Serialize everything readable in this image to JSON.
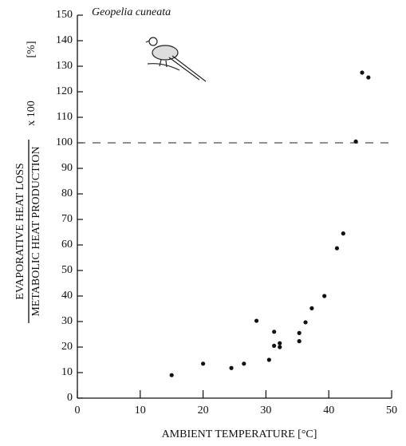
{
  "chart_data": {
    "type": "scatter",
    "title": "Geopelia cuneata",
    "x_label": "AMBIENT TEMPERATURE  [°C]",
    "y_label_numerator": "EVAPORATIVE  HEAT  LOSS",
    "y_label_denominator": "METABOLIC  HEAT  PRODUCTION",
    "y_label_factor": "x 100",
    "y_unit": "[%]",
    "x": [
      15,
      20,
      24.5,
      26.5,
      28.5,
      30.5,
      31.3,
      31.3,
      32.2,
      32.2,
      35.3,
      35.3,
      36.3,
      37.3,
      39.3,
      41.3,
      42.3,
      44.3,
      45.3,
      46.3
    ],
    "values": [
      9,
      13.5,
      11.8,
      13.5,
      30.3,
      15,
      20.5,
      26,
      21.5,
      20,
      25.5,
      22.3,
      29.7,
      35.2,
      40,
      58.7,
      64.5,
      100.5,
      127.5,
      125.6
    ],
    "color": "#111111",
    "reference_line": 100,
    "xlim": [
      0,
      50
    ],
    "xticks": [
      0,
      10,
      20,
      30,
      40,
      50
    ],
    "ylim": [
      0,
      150
    ],
    "yticks": [
      0,
      10,
      20,
      30,
      40,
      50,
      60,
      70,
      80,
      90,
      100,
      110,
      120,
      130,
      140,
      150
    ]
  }
}
